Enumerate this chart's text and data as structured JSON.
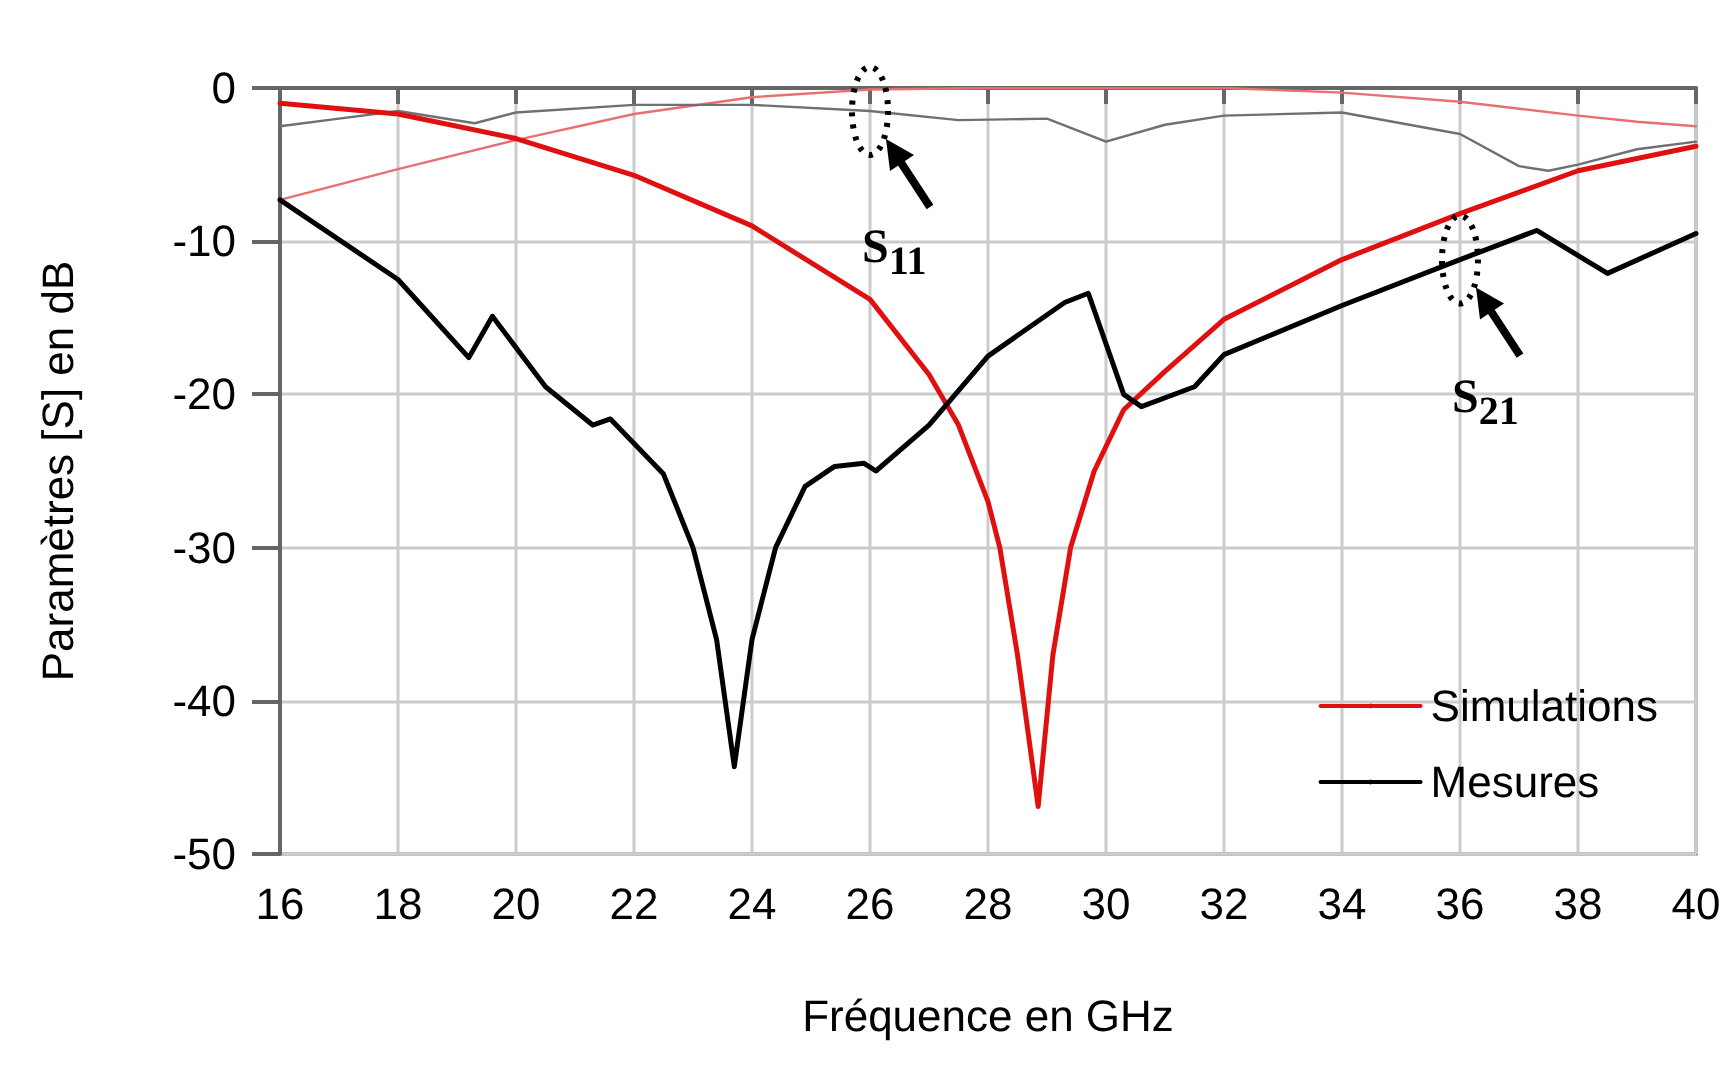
{
  "chart_data": {
    "type": "line",
    "xlabel": "Fréquence en GHz",
    "ylabel": "Paramètres [S] en dB",
    "xlim": [
      16,
      40
    ],
    "xticks": [
      16,
      18,
      20,
      22,
      24,
      26,
      28,
      30,
      32,
      34,
      36,
      38,
      40
    ],
    "ylim": [
      -50,
      0
    ],
    "yticks": [
      -50,
      -40,
      -30,
      -20,
      -10,
      0
    ],
    "grid": true,
    "legend": "bottom right",
    "marker": "none",
    "line_style": "solid",
    "annotations": [
      {
        "text": "S$_{11}$",
        "x": 26,
        "y": -1.5
      },
      {
        "text": "S$_{21}$",
        "x": 36,
        "y": -11.2
      }
    ],
    "series": [
      {
        "name": "Simulations",
        "color": "#e01010",
        "x": [
          16,
          18,
          20,
          22,
          24,
          26,
          27,
          27.5,
          28,
          28.2,
          28.5,
          28.85,
          29.1,
          29.4,
          29.8,
          30.3,
          31,
          32,
          34,
          36,
          38,
          40
        ],
        "values": [
          -1,
          -1.7,
          -3.3,
          -5.7,
          -9,
          -13.8,
          -18.7,
          -22,
          -27,
          -30,
          -37,
          -46.9,
          -37,
          -30,
          -25,
          -21,
          -18.5,
          -15.1,
          -11.2,
          -8.2,
          -5.4,
          -3.8
        ]
      },
      {
        "name": "Mesures",
        "color": "#000000",
        "x": [
          16,
          18,
          19.2,
          19.6,
          20.5,
          21.3,
          21.6,
          22.5,
          23,
          23.4,
          23.7,
          24,
          24.4,
          24.9,
          25.4,
          25.9,
          26.1,
          27,
          28,
          29.3,
          29.7,
          30.3,
          30.6,
          31.5,
          32,
          34,
          36,
          37.3,
          38.5,
          40
        ],
        "values": [
          -7.3,
          -12.5,
          -17.6,
          -14.9,
          -19.5,
          -22,
          -21.6,
          -25.2,
          -30,
          -36,
          -44.3,
          -36,
          -30,
          -26,
          -24.7,
          -24.5,
          -25,
          -22,
          -17.5,
          -14,
          -13.4,
          -20,
          -20.8,
          -19.5,
          -17.4,
          -14.2,
          -11.2,
          -9.3,
          -12.1,
          -9.5
        ]
      },
      {
        "color": "#e87070",
        "x": [
          16,
          18,
          20,
          22,
          24,
          26,
          28,
          32,
          34,
          36,
          38,
          39,
          40
        ],
        "values": [
          -7.3,
          -5.3,
          -3.4,
          -1.7,
          -0.6,
          -0.1,
          0,
          0,
          -0.3,
          -0.9,
          -1.8,
          -2.2,
          -2.5
        ]
      },
      {
        "color": "#707070",
        "x": [
          16,
          17,
          18,
          19.3,
          20,
          22,
          24,
          26,
          27.5,
          29,
          30,
          31,
          32,
          34,
          36,
          37,
          37.5,
          38,
          39,
          40
        ],
        "values": [
          -2.5,
          -2,
          -1.5,
          -2.3,
          -1.6,
          -1.1,
          -1.1,
          -1.5,
          -2.1,
          -2.0,
          -3.5,
          -2.4,
          -1.8,
          -1.6,
          -3,
          -5.1,
          -5.4,
          -5,
          -4,
          -3.5
        ]
      }
    ]
  }
}
